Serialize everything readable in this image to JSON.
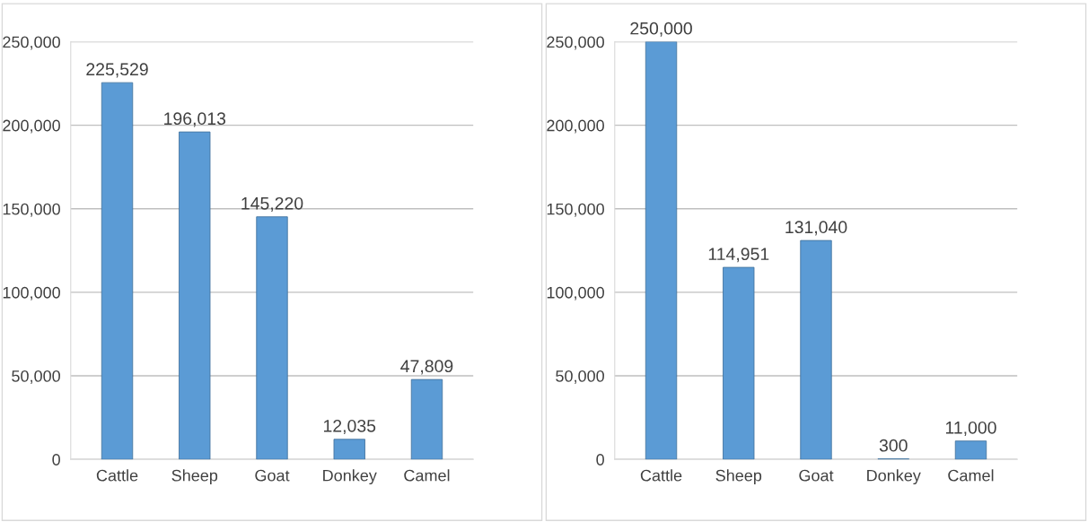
{
  "chart_data": [
    {
      "type": "bar",
      "categories": [
        "Cattle",
        "Sheep",
        "Goat",
        "Donkey",
        "Camel"
      ],
      "values": [
        225529,
        196013,
        145220,
        12035,
        47809
      ],
      "value_labels": [
        "225,529",
        "196,013",
        "145,220",
        "12,035",
        "47,809"
      ],
      "color": "#5b9bd5",
      "ylim": [
        0,
        250000
      ],
      "yticks": [
        {
          "value": 0,
          "label": "0"
        },
        {
          "value": 50000,
          "label": "50,000"
        },
        {
          "value": 100000,
          "label": "100,000"
        },
        {
          "value": 150000,
          "label": "150,000"
        },
        {
          "value": 200000,
          "label": "200,000"
        },
        {
          "value": 250000,
          "label": "250,000"
        }
      ],
      "grid": "y"
    },
    {
      "type": "bar",
      "categories": [
        "Cattle",
        "Sheep",
        "Goat",
        "Donkey",
        "Camel"
      ],
      "values": [
        250000,
        114951,
        131040,
        300,
        11000
      ],
      "value_labels": [
        "250,000",
        "114,951",
        "131,040",
        "300",
        "11,000"
      ],
      "color": "#5b9bd5",
      "ylim": [
        0,
        250000
      ],
      "yticks": [
        {
          "value": 0,
          "label": "0"
        },
        {
          "value": 50000,
          "label": "50,000"
        },
        {
          "value": 100000,
          "label": "100,000"
        },
        {
          "value": 150000,
          "label": "150,000"
        },
        {
          "value": 200000,
          "label": "200,000"
        },
        {
          "value": 250000,
          "label": "250,000"
        }
      ],
      "grid": "y"
    }
  ]
}
